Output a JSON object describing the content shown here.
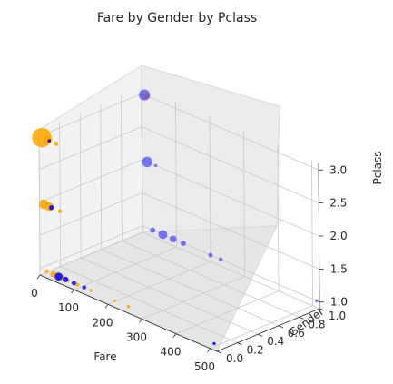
{
  "chart_data": {
    "type": "scatter3d",
    "title": "Fare by Gender by Pclass",
    "xlabel": "Fare",
    "ylabel": "Gender",
    "zlabel": "Pclass",
    "xlim": [
      0,
      520
    ],
    "ylim": [
      0,
      1
    ],
    "zlim": [
      0.9,
      3.1
    ],
    "x_ticks": [
      "0",
      "100",
      "200",
      "300",
      "400",
      "500"
    ],
    "y_ticks": [
      "0.0",
      "0.2",
      "0.4",
      "0.6",
      "0.8",
      "1.0"
    ],
    "z_ticks": [
      "1.0",
      "1.5",
      "2.0",
      "2.5",
      "3.0"
    ],
    "grid": true,
    "series": [
      {
        "color": "#ffa500",
        "points": [
          {
            "x": 8,
            "y": 0,
            "z": 3,
            "s": 190
          },
          {
            "x": 24,
            "y": 0,
            "z": 3,
            "s": 40
          },
          {
            "x": 50,
            "y": 0,
            "z": 3,
            "s": 10
          },
          {
            "x": 12,
            "y": 0,
            "z": 2,
            "s": 45
          },
          {
            "x": 28,
            "y": 0,
            "z": 2,
            "s": 40
          },
          {
            "x": 60,
            "y": 0,
            "z": 2,
            "s": 8
          },
          {
            "x": 20,
            "y": 0,
            "z": 1,
            "s": 8
          },
          {
            "x": 40,
            "y": 0,
            "z": 1,
            "s": 22
          },
          {
            "x": 60,
            "y": 0,
            "z": 1,
            "s": 22
          },
          {
            "x": 80,
            "y": 0,
            "z": 1,
            "s": 12
          },
          {
            "x": 110,
            "y": 0,
            "z": 1,
            "s": 8
          },
          {
            "x": 150,
            "y": 0,
            "z": 1,
            "s": 5
          },
          {
            "x": 220,
            "y": 0,
            "z": 1,
            "s": 4
          },
          {
            "x": 260,
            "y": 0,
            "z": 1,
            "s": 5
          },
          {
            "x": 15,
            "y": 1,
            "z": 3,
            "s": 28
          }
        ]
      },
      {
        "color": "#0000ff",
        "points": [
          {
            "x": 30,
            "y": 0,
            "z": 3,
            "s": 6
          },
          {
            "x": 35,
            "y": 0,
            "z": 2,
            "s": 12
          },
          {
            "x": 55,
            "y": 0,
            "z": 1,
            "s": 32
          },
          {
            "x": 75,
            "y": 0,
            "z": 1,
            "s": 16
          },
          {
            "x": 100,
            "y": 0,
            "z": 1,
            "s": 10
          },
          {
            "x": 130,
            "y": 0,
            "z": 1,
            "s": 8
          },
          {
            "x": 512,
            "y": 0,
            "z": 1,
            "s": 5
          },
          {
            "x": 8,
            "y": 1,
            "z": 3,
            "s": 60
          },
          {
            "x": 15,
            "y": 1,
            "z": 2,
            "s": 55
          },
          {
            "x": 40,
            "y": 1,
            "z": 2,
            "s": 4
          },
          {
            "x": 30,
            "y": 1,
            "z": 1,
            "s": 14
          },
          {
            "x": 60,
            "y": 1,
            "z": 1,
            "s": 40
          },
          {
            "x": 90,
            "y": 1,
            "z": 1,
            "s": 24
          },
          {
            "x": 120,
            "y": 1,
            "z": 1,
            "s": 14
          },
          {
            "x": 200,
            "y": 1,
            "z": 1,
            "s": 10
          },
          {
            "x": 230,
            "y": 1,
            "z": 1,
            "s": 8
          },
          {
            "x": 512,
            "y": 1,
            "z": 1,
            "s": 5
          }
        ]
      }
    ]
  }
}
